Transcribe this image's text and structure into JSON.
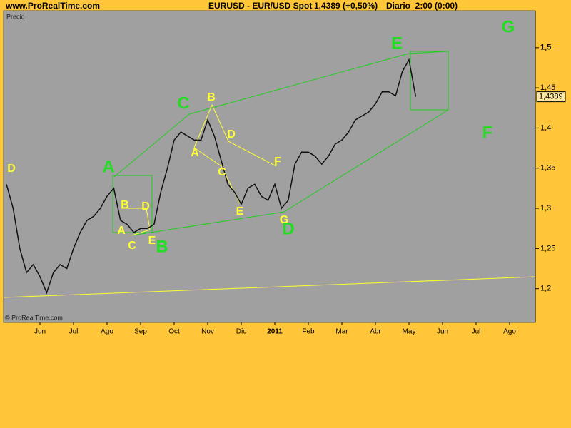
{
  "chart_data": {
    "type": "line",
    "site": "www.ProRealTime.com",
    "title": "EURUSD - EUR/USD Spot",
    "quote": "1,4389 (+0,50%)",
    "period": "Diario  2:00 (0:00)",
    "panel_label": "Precio",
    "copyright": "© ProRealTime.com",
    "last_price": {
      "value": 1.4389,
      "label": "1,4389"
    },
    "categories": [
      null,
      null,
      null,
      null,
      null,
      "Jun",
      null,
      null,
      null,
      null,
      "Jul",
      null,
      null,
      null,
      null,
      "Ago",
      null,
      null,
      null,
      null,
      "Sep",
      null,
      null,
      null,
      null,
      "Oct",
      null,
      null,
      null,
      null,
      "Nov",
      null,
      null,
      null,
      null,
      "Dic",
      null,
      null,
      null,
      null,
      "2011",
      null,
      null,
      null,
      null,
      "Feb",
      null,
      null,
      null,
      null,
      "Mar",
      null,
      null,
      null,
      null,
      "Abr",
      null,
      null,
      null,
      null,
      "May",
      null,
      null,
      null,
      null,
      "Jun",
      null,
      null,
      null,
      null,
      "Jul",
      null,
      null,
      null,
      null,
      "Ago",
      null,
      null,
      null
    ],
    "series": [
      {
        "name": "EURUSD",
        "color": "#111111",
        "values": [
          1.33,
          1.3,
          1.25,
          1.22,
          1.23,
          1.215,
          1.195,
          1.22,
          1.23,
          1.225,
          1.25,
          1.27,
          1.285,
          1.29,
          1.3,
          1.315,
          1.325,
          1.285,
          1.28,
          1.27,
          1.275,
          1.275,
          1.28,
          1.32,
          1.35,
          1.385,
          1.395,
          1.39,
          1.385,
          1.385,
          1.41,
          1.39,
          1.36,
          1.33,
          1.32,
          1.305,
          1.325,
          1.33,
          1.315,
          1.31,
          1.33,
          1.3,
          1.31,
          1.355,
          1.37,
          1.37,
          1.365,
          1.355,
          1.365,
          1.38,
          1.385,
          1.395,
          1.41,
          1.415,
          1.42,
          1.43,
          1.445,
          1.445,
          1.44,
          1.47,
          1.485,
          1.439,
          null,
          null,
          null,
          null,
          null,
          null,
          null,
          null,
          null,
          null,
          null,
          null,
          null,
          null,
          null,
          null,
          null
        ]
      }
    ],
    "ylim": [
      1.158,
      1.546
    ],
    "yticks": [
      {
        "value": 1.2,
        "label": "1,2"
      },
      {
        "value": 1.25,
        "label": "1,25"
      },
      {
        "value": 1.3,
        "label": "1,3"
      },
      {
        "value": 1.35,
        "label": "1,35"
      },
      {
        "value": 1.4,
        "label": "1,4"
      },
      {
        "value": 1.45,
        "label": "1,45"
      },
      {
        "value": 1.5,
        "label": "1,5"
      }
    ],
    "annotations": [
      {
        "label": "D",
        "color": "#FFFF33"
      },
      {
        "label": "B",
        "color": "#FFFF33"
      },
      {
        "label": "D",
        "color": "#FFFF33"
      },
      {
        "label": "A",
        "color": "#FFFF33"
      },
      {
        "label": "C",
        "color": "#FFFF33"
      },
      {
        "label": "E",
        "color": "#FFFF33"
      },
      {
        "label": "A",
        "color": "#FFFF33"
      },
      {
        "label": "B",
        "color": "#FFFF33"
      },
      {
        "label": "D",
        "color": "#FFFF33"
      },
      {
        "label": "C",
        "color": "#FFFF33"
      },
      {
        "label": "E",
        "color": "#FFFF33"
      },
      {
        "label": "F",
        "color": "#FFFF33"
      },
      {
        "label": "G",
        "color": "#FFFF33"
      },
      {
        "label": "A",
        "color": "#22DD22"
      },
      {
        "label": "B",
        "color": "#22DD22"
      },
      {
        "label": "C",
        "color": "#22DD22"
      },
      {
        "label": "D",
        "color": "#22DD22"
      },
      {
        "label": "E",
        "color": "#22DD22"
      },
      {
        "label": "F",
        "color": "#22DD22"
      },
      {
        "label": "G",
        "color": "#22DD22"
      }
    ]
  }
}
